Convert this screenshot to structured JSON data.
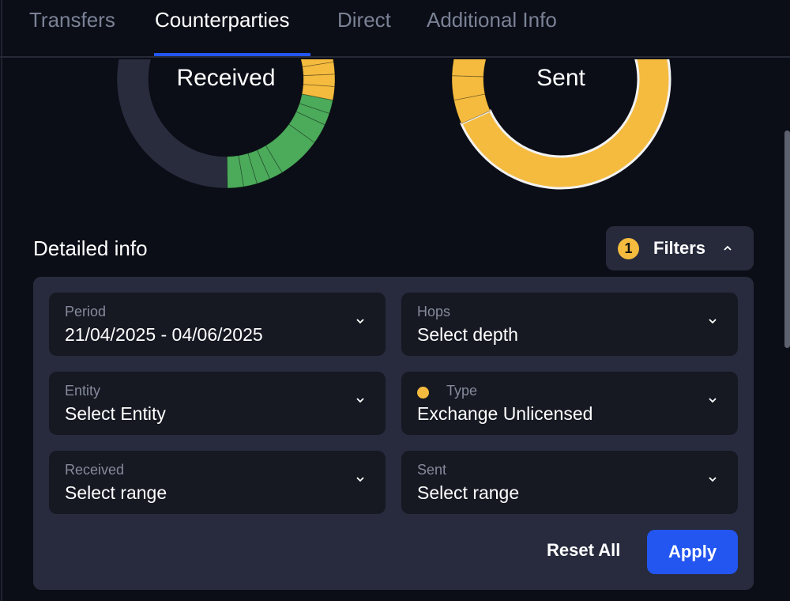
{
  "tabs": [
    {
      "label": "Transfers"
    },
    {
      "label": "Counterparties",
      "active": true
    },
    {
      "label": "Direct"
    },
    {
      "label": "Additional Info"
    }
  ],
  "colors": {
    "accent": "#2356f0",
    "yellow": "#f4bb3f",
    "green": "#4caa5b",
    "dark": "#282c3d",
    "background": "#0b0e17"
  },
  "chart_data": [
    {
      "type": "pie",
      "title": "Received",
      "unit": "percent of ring, clockwise from top",
      "segments": [
        {
          "color": "yellow",
          "value": 18.9,
          "highlighted": true
        },
        {
          "color": "yellow",
          "value": 1.8
        },
        {
          "color": "yellow",
          "value": 1.8
        },
        {
          "color": "yellow",
          "value": 1.8
        },
        {
          "color": "yellow",
          "value": 1.8
        },
        {
          "color": "yellow",
          "value": 2.0
        },
        {
          "color": "green",
          "value": 2.0
        },
        {
          "color": "green",
          "value": 1.8
        },
        {
          "color": "green",
          "value": 3.0
        },
        {
          "color": "green",
          "value": 6.5
        },
        {
          "color": "green",
          "value": 2.0
        },
        {
          "color": "green",
          "value": 2.0
        },
        {
          "color": "green",
          "value": 2.0
        },
        {
          "color": "green",
          "value": 2.4
        },
        {
          "color": "dark",
          "value": 50.2
        }
      ]
    },
    {
      "type": "pie",
      "title": "Sent",
      "unit": "percent of ring, clockwise from top",
      "segments": [
        {
          "color": "yellow",
          "value": 68.3,
          "highlighted": true
        },
        {
          "color": "yellow",
          "value": 3.6
        },
        {
          "color": "yellow",
          "value": 3.6
        },
        {
          "color": "yellow",
          "value": 3.6
        },
        {
          "color": "green",
          "value": 10.0
        },
        {
          "color": "green",
          "value": 10.9
        }
      ]
    }
  ],
  "section": {
    "title": "Detailed info"
  },
  "filters": {
    "badge": "1",
    "label": "Filters",
    "expanded": true
  },
  "fields": [
    {
      "label": "Period",
      "value": "21/04/2025 - 04/06/2025"
    },
    {
      "label": "Hops",
      "value": "Select depth"
    },
    {
      "label": "Entity",
      "value": "Select Entity"
    },
    {
      "label": "Type",
      "value": "Exchange Unlicensed",
      "active_dot": true
    },
    {
      "label": "Received",
      "value": "Select range"
    },
    {
      "label": "Sent",
      "value": "Select range"
    }
  ],
  "actions": {
    "reset": "Reset All",
    "apply": "Apply"
  }
}
